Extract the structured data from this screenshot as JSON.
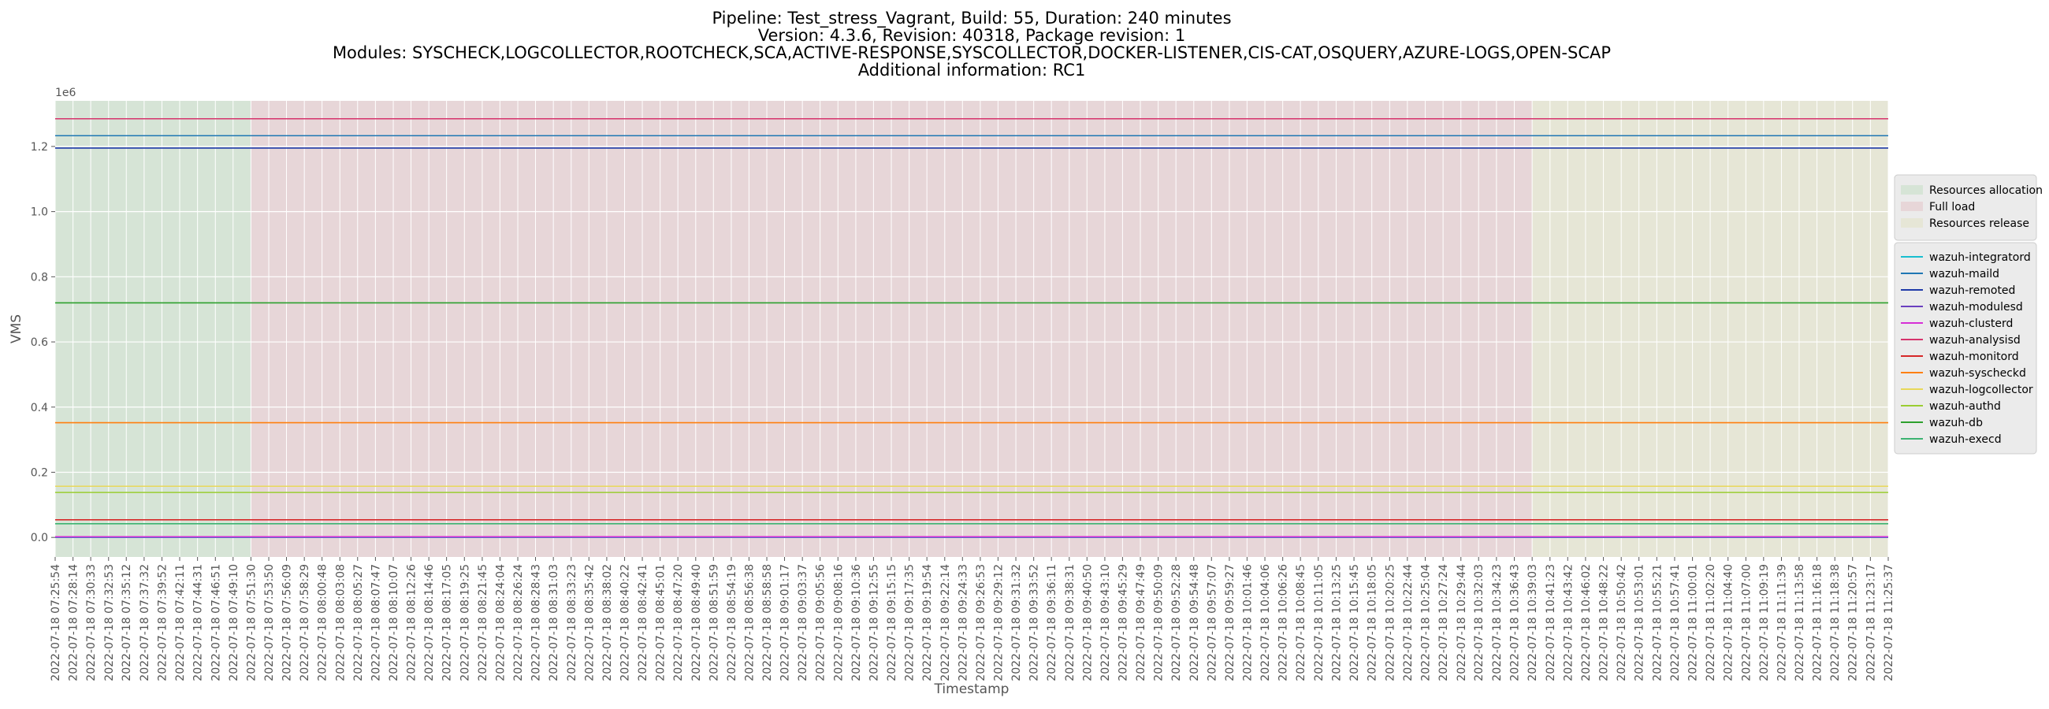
{
  "chart_data": {
    "type": "line",
    "title_lines": [
      "Pipeline: Test_stress_Vagrant, Build: 55, Duration: 240 minutes",
      "Version: 4.3.6, Revision: 40318, Package revision: 1",
      "Modules: SYSCHECK,LOGCOLLECTOR,ROOTCHECK,SCA,ACTIVE-RESPONSE,SYSCOLLECTOR,DOCKER-LISTENER,CIS-CAT,OSQUERY,AZURE-LOGS,OPEN-SCAP",
      "Additional information: RC1"
    ],
    "xlabel": "Timestamp",
    "ylabel": "VMS",
    "y_offset_text": "1e6",
    "ylim": [
      -0.06,
      1.34
    ],
    "y_ticks": [
      "0.0",
      "0.2",
      "0.4",
      "0.6",
      "0.8",
      "1.0",
      "1.2"
    ],
    "grid": true,
    "legend_position": "right",
    "x_ticks": [
      "2022-07-18 07:25:54",
      "2022-07-18 07:28:14",
      "2022-07-18 07:30:33",
      "2022-07-18 07:32:53",
      "2022-07-18 07:35:12",
      "2022-07-18 07:37:32",
      "2022-07-18 07:39:52",
      "2022-07-18 07:42:11",
      "2022-07-18 07:44:31",
      "2022-07-18 07:46:51",
      "2022-07-18 07:49:10",
      "2022-07-18 07:51:30",
      "2022-07-18 07:53:50",
      "2022-07-18 07:56:09",
      "2022-07-18 07:58:29",
      "2022-07-18 08:00:48",
      "2022-07-18 08:03:08",
      "2022-07-18 08:05:27",
      "2022-07-18 08:07:47",
      "2022-07-18 08:10:07",
      "2022-07-18 08:12:26",
      "2022-07-18 08:14:46",
      "2022-07-18 08:17:05",
      "2022-07-18 08:19:25",
      "2022-07-18 08:21:45",
      "2022-07-18 08:24:04",
      "2022-07-18 08:26:24",
      "2022-07-18 08:28:43",
      "2022-07-18 08:31:03",
      "2022-07-18 08:33:23",
      "2022-07-18 08:35:42",
      "2022-07-18 08:38:02",
      "2022-07-18 08:40:22",
      "2022-07-18 08:42:41",
      "2022-07-18 08:45:01",
      "2022-07-18 08:47:20",
      "2022-07-18 08:49:40",
      "2022-07-18 08:51:59",
      "2022-07-18 08:54:19",
      "2022-07-18 08:56:38",
      "2022-07-18 08:58:58",
      "2022-07-18 09:01:17",
      "2022-07-18 09:03:37",
      "2022-07-18 09:05:56",
      "2022-07-18 09:08:16",
      "2022-07-18 09:10:36",
      "2022-07-18 09:12:55",
      "2022-07-18 09:15:15",
      "2022-07-18 09:17:35",
      "2022-07-18 09:19:54",
      "2022-07-18 09:22:14",
      "2022-07-18 09:24:33",
      "2022-07-18 09:26:53",
      "2022-07-18 09:29:12",
      "2022-07-18 09:31:32",
      "2022-07-18 09:33:52",
      "2022-07-18 09:36:11",
      "2022-07-18 09:38:31",
      "2022-07-18 09:40:50",
      "2022-07-18 09:43:10",
      "2022-07-18 09:45:29",
      "2022-07-18 09:47:49",
      "2022-07-18 09:50:09",
      "2022-07-18 09:52:28",
      "2022-07-18 09:54:48",
      "2022-07-18 09:57:07",
      "2022-07-18 09:59:27",
      "2022-07-18 10:01:46",
      "2022-07-18 10:04:06",
      "2022-07-18 10:06:26",
      "2022-07-18 10:08:45",
      "2022-07-18 10:11:05",
      "2022-07-18 10:13:25",
      "2022-07-18 10:15:45",
      "2022-07-18 10:18:05",
      "2022-07-18 10:20:25",
      "2022-07-18 10:22:44",
      "2022-07-18 10:25:04",
      "2022-07-18 10:27:24",
      "2022-07-18 10:29:44",
      "2022-07-18 10:32:03",
      "2022-07-18 10:34:23",
      "2022-07-18 10:36:43",
      "2022-07-18 10:39:03",
      "2022-07-18 10:41:23",
      "2022-07-18 10:43:42",
      "2022-07-18 10:46:02",
      "2022-07-18 10:48:22",
      "2022-07-18 10:50:42",
      "2022-07-18 10:53:01",
      "2022-07-18 10:55:21",
      "2022-07-18 10:57:41",
      "2022-07-18 11:00:01",
      "2022-07-18 11:02:20",
      "2022-07-18 11:04:40",
      "2022-07-18 11:07:00",
      "2022-07-18 11:09:19",
      "2022-07-18 11:11:39",
      "2022-07-18 11:13:58",
      "2022-07-18 11:16:18",
      "2022-07-18 11:18:38",
      "2022-07-18 11:20:57",
      "2022-07-18 11:23:17",
      "2022-07-18 11:25:37"
    ],
    "phases": [
      {
        "name": "Resources allocation",
        "start": "2022-07-18 07:25:54",
        "end": "2022-07-18 07:51:30",
        "color": "#d6e4d6"
      },
      {
        "name": "Full load",
        "start": "2022-07-18 07:51:30",
        "end": "2022-07-18 10:39:03",
        "color": "#e7d6d8"
      },
      {
        "name": "Resources release",
        "start": "2022-07-18 10:39:03",
        "end": "2022-07-18 11:25:37",
        "color": "#e6e6d6"
      }
    ],
    "series": [
      {
        "name": "wazuh-integratord",
        "color": "#17becf",
        "value": 0.0
      },
      {
        "name": "wazuh-maild",
        "color": "#1f77b4",
        "value": 1.233
      },
      {
        "name": "wazuh-remoted",
        "color": "#1f3aa8",
        "value": 1.195
      },
      {
        "name": "wazuh-modulesd",
        "color": "#6a3fbf",
        "value": 0.001
      },
      {
        "name": "wazuh-clusterd",
        "color": "#d62fd6",
        "value": 0.002
      },
      {
        "name": "wazuh-analysisd",
        "color": "#d6336c",
        "value": 1.285
      },
      {
        "name": "wazuh-monitord",
        "color": "#d62728",
        "value": 0.054
      },
      {
        "name": "wazuh-syscheckd",
        "color": "#ff7f0e",
        "value": 0.352
      },
      {
        "name": "wazuh-logcollector",
        "color": "#e8d85a",
        "value": 0.157
      },
      {
        "name": "wazuh-authd",
        "color": "#9acd32",
        "value": 0.138
      },
      {
        "name": "wazuh-db",
        "color": "#2ca02c",
        "value": 0.72
      },
      {
        "name": "wazuh-execd",
        "color": "#3cb371",
        "value": 0.042
      }
    ]
  }
}
